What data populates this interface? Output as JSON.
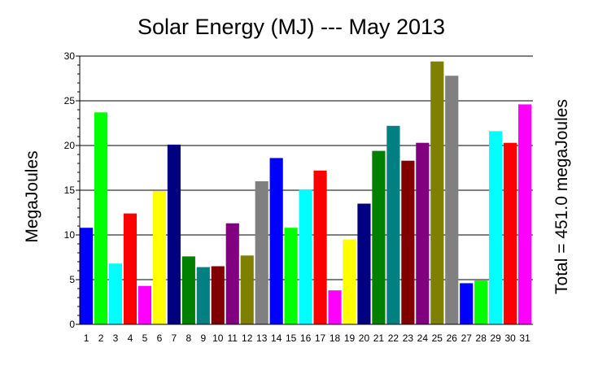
{
  "chart_data": {
    "type": "bar",
    "title": "Solar Energy (MJ) --- May 2013",
    "xlabel": "",
    "ylabel": "MegaJoules",
    "right_label": "Total = 451.0 megaJoules",
    "ylim": [
      0,
      30
    ],
    "yticks": [
      "0",
      "5",
      "10",
      "15",
      "20",
      "25",
      "30"
    ],
    "grid": true,
    "categories": [
      "1",
      "2",
      "3",
      "4",
      "5",
      "6",
      "7",
      "8",
      "9",
      "10",
      "11",
      "12",
      "13",
      "14",
      "15",
      "16",
      "17",
      "18",
      "19",
      "20",
      "21",
      "22",
      "23",
      "24",
      "25",
      "26",
      "27",
      "28",
      "29",
      "30",
      "31"
    ],
    "values": [
      10.8,
      23.7,
      6.8,
      12.4,
      4.3,
      14.9,
      20.1,
      7.6,
      6.4,
      6.5,
      11.3,
      7.7,
      16.0,
      18.6,
      10.8,
      15.1,
      17.2,
      3.8,
      9.5,
      13.5,
      19.4,
      22.2,
      18.3,
      20.3,
      29.4,
      27.8,
      4.6,
      4.9,
      21.6,
      20.3,
      24.6
    ],
    "colors": [
      "#0000ff",
      "#00ff00",
      "#00ffff",
      "#ff0000",
      "#ff00ff",
      "#ffff00",
      "#000080",
      "#008000",
      "#008080",
      "#800000",
      "#800080",
      "#808000",
      "#808080",
      "#0000ff",
      "#00ff00",
      "#00ffff",
      "#ff0000",
      "#ff00ff",
      "#ffff00",
      "#000080",
      "#008000",
      "#008080",
      "#800000",
      "#800080",
      "#808000",
      "#808080",
      "#0000ff",
      "#00ff00",
      "#00ffff",
      "#ff0000",
      "#ff00ff"
    ]
  }
}
